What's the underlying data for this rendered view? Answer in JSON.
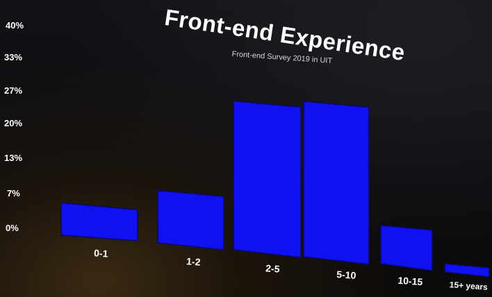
{
  "chart_data": {
    "type": "bar",
    "title": "Front-end Experience",
    "subtitle": "Front-end Survey 2019 in UIT",
    "xlabel": "",
    "ylabel": "",
    "categories": [
      "0-1",
      "1-2",
      "2-5",
      "5-10",
      "10-15",
      "15+ years"
    ],
    "values": [
      6,
      9,
      33,
      32,
      8,
      1
    ],
    "yticks": [
      "0%",
      "7%",
      "13%",
      "20%",
      "27%",
      "33%",
      "40%"
    ],
    "ylim": [
      0,
      40
    ],
    "grid": false,
    "legend": "none",
    "bar_color": "#1010f0",
    "background_color": "#0b0b0f",
    "text_color": "#ffffff"
  }
}
